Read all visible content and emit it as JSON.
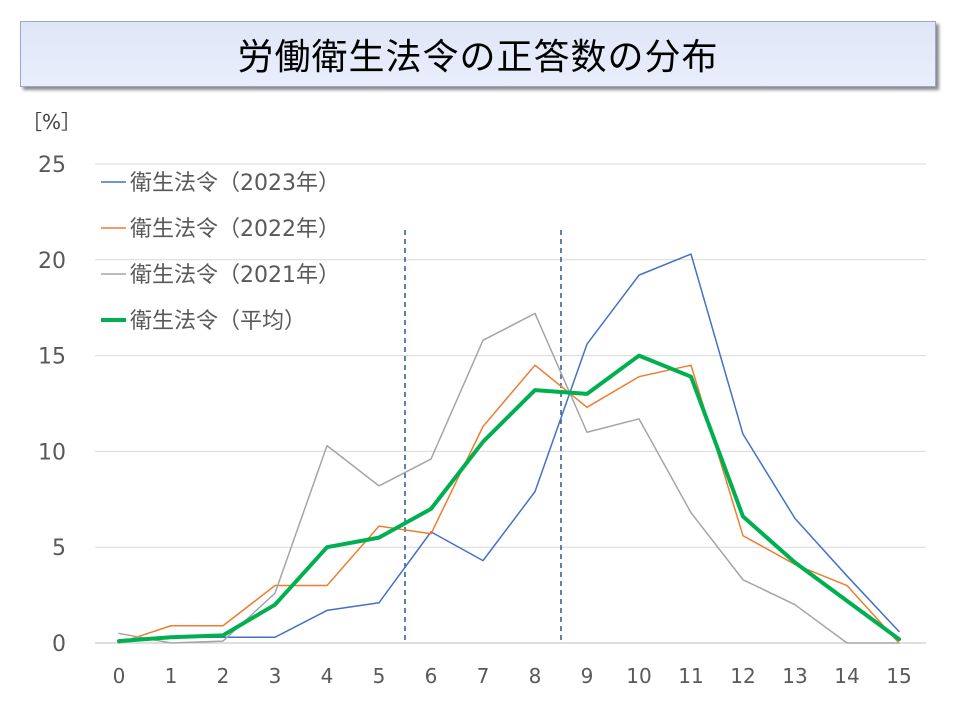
{
  "title": "労働衛生法令の正答数の分布",
  "unit_label": "［%］",
  "chart_data": {
    "type": "line",
    "x": [
      0,
      1,
      2,
      3,
      4,
      5,
      6,
      7,
      8,
      9,
      10,
      11,
      12,
      13,
      14,
      15
    ],
    "xlim": [
      0,
      15
    ],
    "ylim": [
      0,
      25
    ],
    "y_ticks": [
      0,
      5,
      10,
      15,
      20,
      25
    ],
    "grid": "horizontal",
    "legend_position": "top-left",
    "series": [
      {
        "name": "衛生法令（2023年）",
        "color": "#4472c4",
        "width": 1.5,
        "values": [
          0.1,
          0.3,
          0.3,
          0.3,
          1.7,
          2.1,
          5.8,
          4.3,
          7.9,
          15.6,
          19.2,
          20.3,
          10.9,
          6.5,
          3.5,
          0.6
        ]
      },
      {
        "name": "衛生法令（2022年）",
        "color": "#ed7d31",
        "width": 1.5,
        "values": [
          0.0,
          0.9,
          0.9,
          3.0,
          3.0,
          6.1,
          5.7,
          11.3,
          14.5,
          12.3,
          13.9,
          14.5,
          5.6,
          4.1,
          3.0,
          0.0
        ]
      },
      {
        "name": "衛生法令（2021年）",
        "color": "#a5a5a5",
        "width": 1.5,
        "values": [
          0.5,
          0.0,
          0.1,
          2.6,
          10.3,
          8.2,
          9.6,
          15.8,
          17.2,
          11.0,
          11.7,
          6.8,
          3.3,
          2.0,
          0.0,
          0.0
        ]
      },
      {
        "name": "衛生法令（平均）",
        "color": "#00b050",
        "width": 4,
        "values": [
          0.1,
          0.3,
          0.4,
          2.0,
          5.0,
          5.5,
          7.0,
          10.5,
          13.2,
          13.0,
          15.0,
          13.9,
          6.6,
          4.2,
          2.2,
          0.2
        ]
      }
    ],
    "reference_lines_x": [
      5.5,
      8.5
    ]
  }
}
